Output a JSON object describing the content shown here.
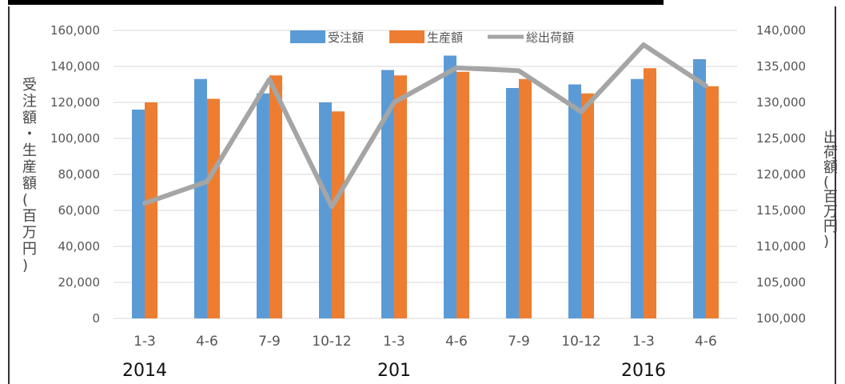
{
  "chart_data": {
    "type": "bar",
    "categories": [
      "1-3",
      "4-6",
      "7-9",
      "10-12",
      "1-3",
      "4-6",
      "7-9",
      "10-12",
      "1-3",
      "4-6"
    ],
    "year_labels": [
      "2014",
      "201",
      "2016"
    ],
    "series": [
      {
        "name": "受注額",
        "type": "bar",
        "axis": "left",
        "color": "#5b9bd5",
        "values": [
          116000,
          133000,
          125000,
          120000,
          138000,
          146000,
          128000,
          130000,
          133000,
          144000
        ]
      },
      {
        "name": "生産額",
        "type": "bar",
        "axis": "left",
        "color": "#ed7d31",
        "values": [
          120000,
          122000,
          135000,
          115000,
          135000,
          137000,
          133000,
          125000,
          139000,
          129000
        ]
      },
      {
        "name": "総出荷額",
        "type": "line",
        "axis": "right",
        "color": "#a5a5a5",
        "values": [
          116000,
          119000,
          133200,
          115500,
          130000,
          134800,
          134400,
          128700,
          138000,
          132300
        ]
      }
    ],
    "ylim_left": [
      0,
      160000
    ],
    "yticks_left": [
      "0",
      "20,000",
      "40,000",
      "60,000",
      "80,000",
      "100,000",
      "120,000",
      "140,000",
      "160,000"
    ],
    "ylim_right": [
      100000,
      140000
    ],
    "yticks_right": [
      "100,000",
      "105,000",
      "110,000",
      "115,000",
      "120,000",
      "125,000",
      "130,000",
      "135,000",
      "140,000"
    ],
    "ylabel_left": "受注額・生産額(百万円)",
    "ylabel_right": "出荷額(百万円)",
    "grid": true,
    "legend_position": "top"
  }
}
